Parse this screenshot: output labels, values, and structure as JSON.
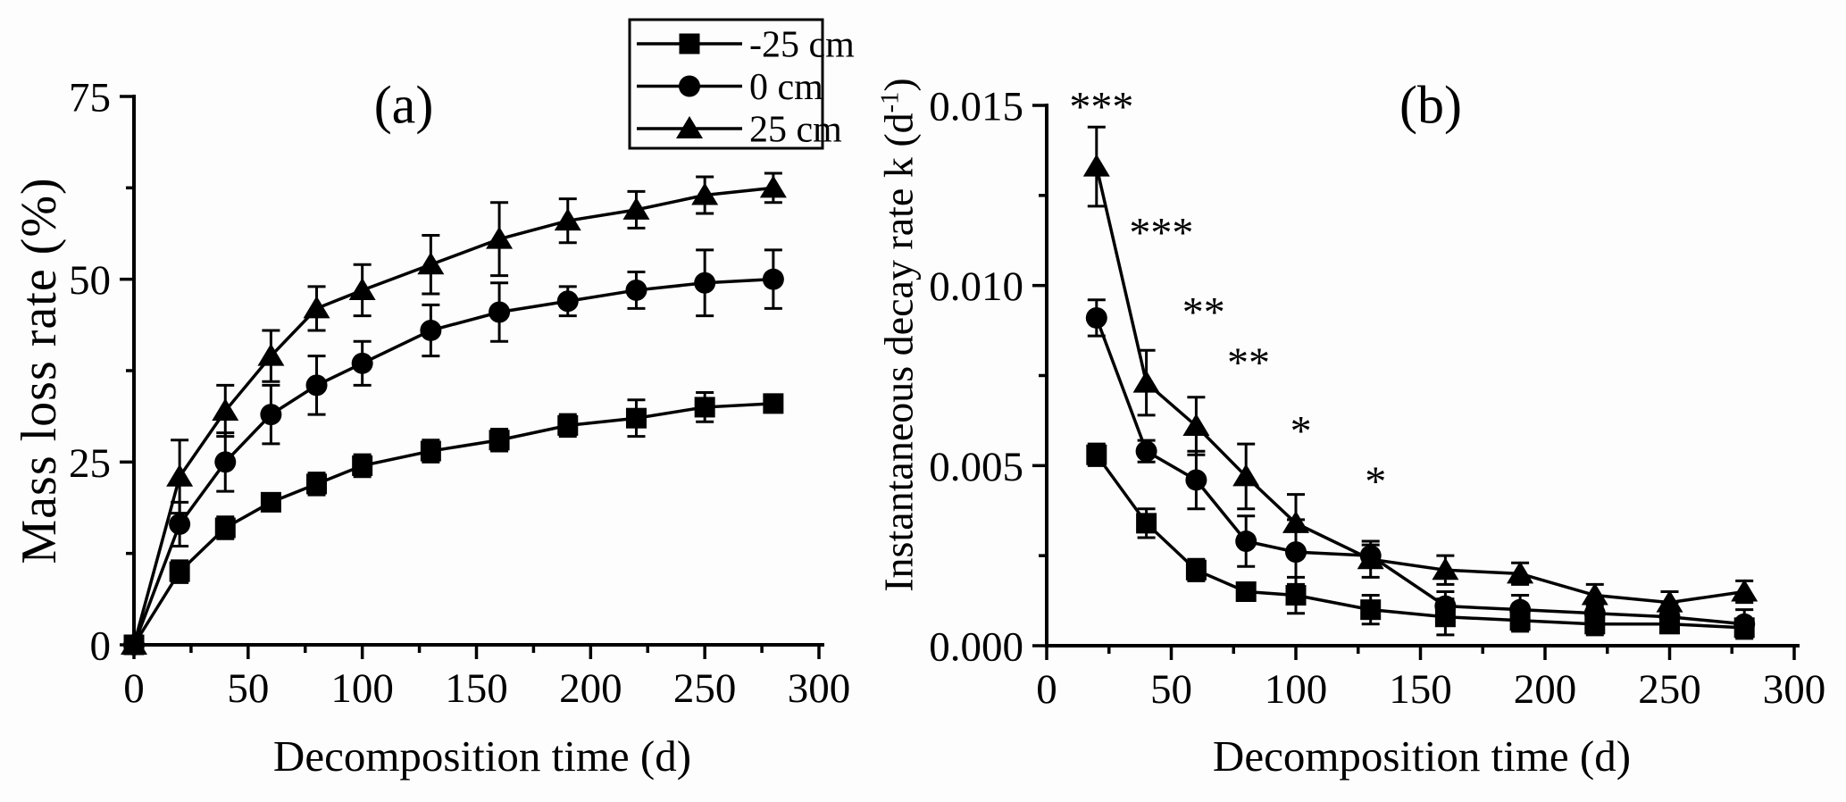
{
  "figure": {
    "background": "#fdfdfd",
    "ink_color": "#000000"
  },
  "chart_data": [
    {
      "panel": "a",
      "type": "line",
      "title": "(a)",
      "xlabel": "Decomposition time (d)",
      "ylabel": "Mass loss rate (%)",
      "xlim": [
        0,
        300
      ],
      "ylim": [
        0,
        75
      ],
      "grid": "off",
      "x_major_ticks": [
        0,
        50,
        100,
        150,
        200,
        250,
        300
      ],
      "x_tick_labels": [
        "0",
        "50",
        "100",
        "150",
        "200",
        "250",
        "300"
      ],
      "x_minor_ticks": [
        25,
        75,
        125,
        175,
        225,
        275
      ],
      "y_major_ticks": [
        0,
        25,
        50,
        75
      ],
      "y_tick_labels": [
        "0",
        "25",
        "50",
        "75"
      ],
      "y_minor_ticks": [
        12.5,
        37.5,
        62.5
      ],
      "x": [
        0,
        20,
        40,
        60,
        80,
        100,
        130,
        160,
        190,
        220,
        250,
        280
      ],
      "series": [
        {
          "name": "-25 cm",
          "marker": "square",
          "values": [
            0,
            10,
            16,
            19.5,
            22,
            24.5,
            26.5,
            28,
            30,
            31,
            32.5,
            33
          ],
          "errors": [
            0,
            1.5,
            1.5,
            1,
            1.5,
            1.5,
            1.5,
            1.5,
            1.5,
            2.5,
            2,
            1.2
          ]
        },
        {
          "name": "0 cm",
          "marker": "circle",
          "values": [
            0,
            16.5,
            25,
            31.5,
            35.5,
            38.5,
            43,
            45.5,
            47,
            48.5,
            49.5,
            50
          ],
          "errors": [
            0,
            3,
            4,
            4,
            4,
            3,
            3.5,
            4,
            2,
            2.5,
            4.5,
            4
          ]
        },
        {
          "name": "25 cm",
          "marker": "triangle",
          "values": [
            0,
            23,
            32,
            39.5,
            46,
            48.5,
            52,
            55.5,
            58,
            59.5,
            61.5,
            62.5
          ],
          "errors": [
            0,
            5,
            3.5,
            3.5,
            3,
            3.5,
            4,
            5,
            3,
            2.5,
            2.5,
            2
          ]
        }
      ],
      "legend": {
        "position": "top-right",
        "entries": [
          "-25 cm",
          "0 cm",
          "25 cm"
        ]
      }
    },
    {
      "panel": "b",
      "type": "line",
      "title": "(b)",
      "xlabel": "Decomposition time (d)",
      "ylabel_prefix": "Instantaneous decay rate k (d",
      "ylabel_sup": "-1",
      "ylabel_suffix": ")",
      "xlim": [
        0,
        300
      ],
      "ylim": [
        0,
        0.015
      ],
      "grid": "off",
      "x_major_ticks": [
        0,
        50,
        100,
        150,
        200,
        250,
        300
      ],
      "x_tick_labels": [
        "0",
        "50",
        "100",
        "150",
        "200",
        "250",
        "300"
      ],
      "x_minor_ticks": [
        25,
        75,
        125,
        175,
        225,
        275
      ],
      "y_major_ticks": [
        0,
        0.005,
        0.01,
        0.015
      ],
      "y_tick_labels": [
        "0.000",
        "0.005",
        "0.010",
        "0.015"
      ],
      "y_minor_ticks": [
        0.0025,
        0.0075,
        0.0125
      ],
      "x": [
        20,
        40,
        60,
        80,
        100,
        130,
        160,
        190,
        220,
        250,
        280
      ],
      "series": [
        {
          "name": "-25 cm",
          "marker": "square",
          "values": [
            0.0053,
            0.0034,
            0.0021,
            0.0015,
            0.0014,
            0.001,
            0.0008,
            0.0007,
            0.0006,
            0.0006,
            0.0005
          ],
          "errors": [
            0.0003,
            0.0004,
            0.0003,
            0.0002,
            0.0005,
            0.0004,
            0.0005,
            0.0003,
            0.0003,
            0.0002,
            0.0002
          ]
        },
        {
          "name": "0 cm",
          "marker": "circle",
          "values": [
            0.0091,
            0.0054,
            0.0046,
            0.0029,
            0.0026,
            0.0025,
            0.0011,
            0.001,
            0.0009,
            0.0008,
            0.0006
          ],
          "errors": [
            0.0005,
            0.0003,
            0.0008,
            0.0007,
            0.0009,
            0.0003,
            0.0004,
            0.0004,
            0.0003,
            0.0004,
            0.0004
          ]
        },
        {
          "name": "25 cm",
          "marker": "triangle",
          "values": [
            0.0133,
            0.0073,
            0.0061,
            0.0047,
            0.0034,
            0.0024,
            0.0021,
            0.002,
            0.0014,
            0.0012,
            0.0015
          ],
          "errors": [
            0.0011,
            0.0009,
            0.0008,
            0.0009,
            0.0008,
            0.0005,
            0.0004,
            0.0003,
            0.0003,
            0.0003,
            0.0003
          ]
        }
      ],
      "annotations": [
        {
          "x": 22,
          "y": 0.0151,
          "text": "***"
        },
        {
          "x": 46,
          "y": 0.0116,
          "text": "***"
        },
        {
          "x": 63,
          "y": 0.0094,
          "text": "**"
        },
        {
          "x": 81,
          "y": 0.008,
          "text": "**"
        },
        {
          "x": 102,
          "y": 0.0061,
          "text": "*"
        },
        {
          "x": 132,
          "y": 0.0047,
          "text": "*"
        }
      ]
    }
  ]
}
